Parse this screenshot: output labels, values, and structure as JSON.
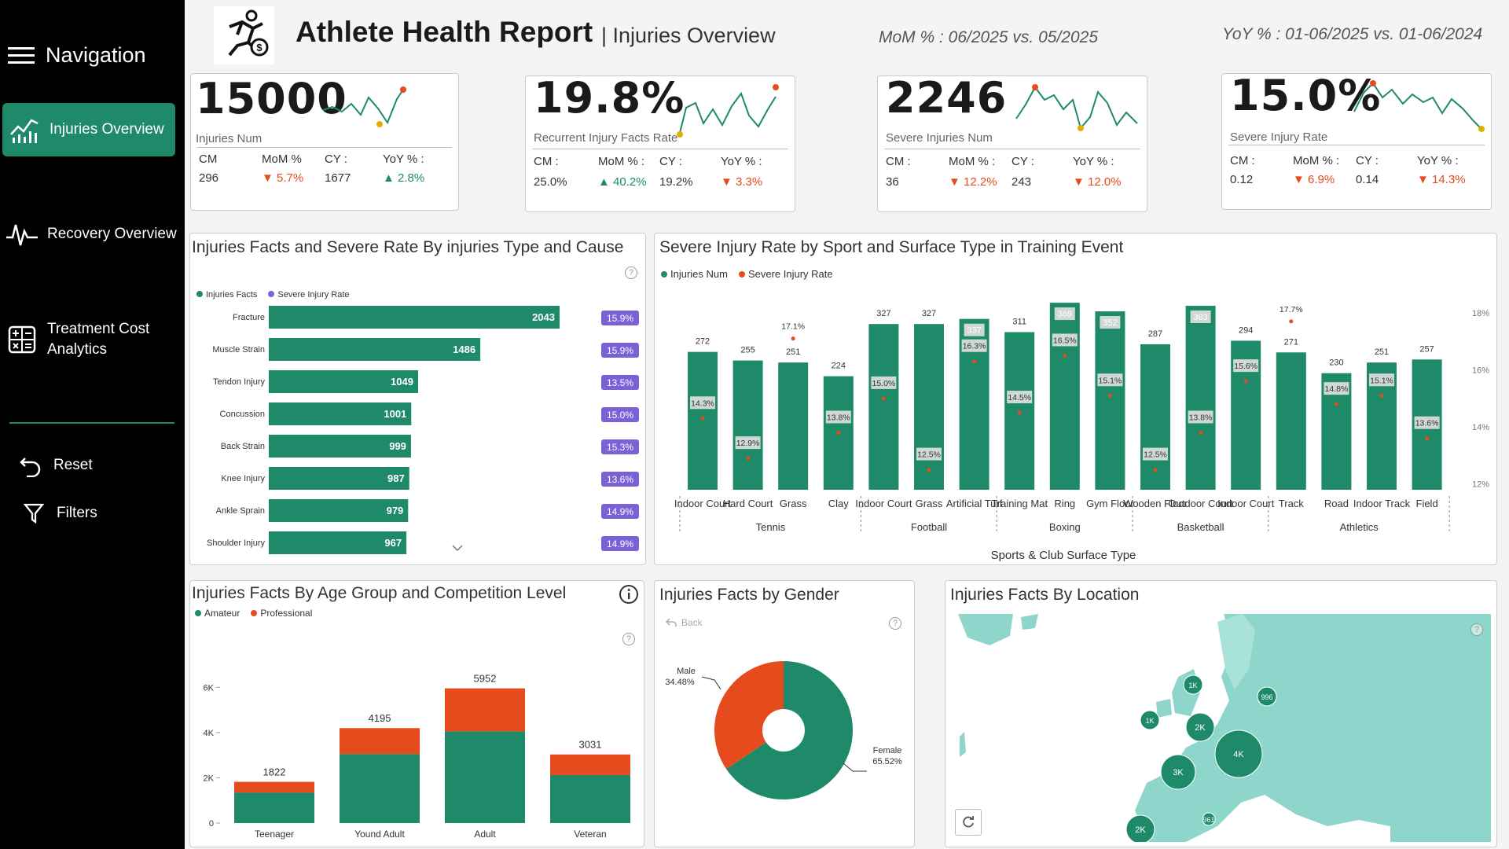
{
  "colors": {
    "accent": "#1e8a69",
    "orange": "#e54b1c",
    "purple": "#7b61d6"
  },
  "nav": {
    "title": "Navigation",
    "items": [
      {
        "label": "Injuries Overview"
      },
      {
        "label": "Recovery Overview"
      },
      {
        "label": "Treatment Cost\nAnalytics"
      }
    ],
    "reset": "Reset",
    "filters": "Filters"
  },
  "header": {
    "title": "Athlete Health Report",
    "sep_subtitle": "| Injuries Overview",
    "mom": "MoM % : 06/2025 vs. 05/2025",
    "yoy": "YoY % : 01-06/2025 vs. 01-06/2024"
  },
  "kpis": [
    {
      "value": "15000",
      "label": "Injuries Num",
      "cm_label": "CM",
      "cm": "296",
      "mom_label": "MoM %",
      "mom": "▼ 5.7%",
      "mom_dir": "dn",
      "cy_label": "CY :",
      "cy": "1677",
      "yoy_label": "YoY % :",
      "yoy": "▲ 2.8%",
      "yoy_dir": "up"
    },
    {
      "value": "19.8%",
      "label": "Recurrent Injury Facts Rate",
      "cm_label": "CM :",
      "cm": "25.0%",
      "mom_label": "MoM % :",
      "mom": "▲ 40.2%",
      "mom_dir": "up",
      "cy_label": "CY :",
      "cy": "19.2%",
      "yoy_label": "YoY % :",
      "yoy": "▼ 3.3%",
      "yoy_dir": "dn"
    },
    {
      "value": "2246",
      "label": "Severe Injuries Num",
      "cm_label": "CM :",
      "cm": "36",
      "mom_label": "MoM % :",
      "mom": "▼ 12.2%",
      "mom_dir": "dn",
      "cy_label": "CY :",
      "cy": "243",
      "yoy_label": "YoY % :",
      "yoy": "▼ 12.0%",
      "yoy_dir": "dn"
    },
    {
      "value": "15.0%",
      "label": "Severe Injury Rate",
      "cm_label": "CM :",
      "cm": "0.12",
      "mom_label": "MoM % :",
      "mom": "▼ 6.9%",
      "mom_dir": "dn",
      "cy_label": "CY :",
      "cy": "0.14",
      "yoy_label": "YoY % :",
      "yoy": "▼ 14.3%",
      "yoy_dir": "dn"
    }
  ],
  "chart_data": [
    {
      "id": "type-cause",
      "type": "bar",
      "orientation": "horizontal",
      "title": "Injuries Facts and Severe Rate By injuries Type and Cause",
      "legend": [
        "Injuries Facts",
        "Severe Injury Rate"
      ],
      "categories": [
        "Fracture",
        "Muscle Strain",
        "Tendon Injury",
        "Concussion",
        "Back Strain",
        "Knee Injury",
        "Ankle Sprain",
        "Shoulder Injury"
      ],
      "values": [
        2043,
        1486,
        1049,
        1001,
        999,
        987,
        979,
        967
      ],
      "rates": [
        "15.9%",
        "15.9%",
        "13.5%",
        "15.0%",
        "15.3%",
        "13.6%",
        "14.9%",
        "14.9%"
      ]
    },
    {
      "id": "sport-surface",
      "type": "bar",
      "title": "Severe Injury Rate by Sport and Surface Type in Training Event",
      "legend": [
        "Injuries Num",
        "Severe Injury Rate"
      ],
      "xlabel": "Sports & Club Surface Type",
      "surfaces": [
        "Indoor Court",
        "Hard Court",
        "Grass",
        "Clay",
        "Indoor Court",
        "Grass",
        "Artificial Turf",
        "Training Mat",
        "Ring",
        "Gym Floor",
        "Wooden Floor",
        "Outdoor Court",
        "Indoor Court",
        "Track",
        "Road",
        "Indoor Track",
        "Field"
      ],
      "sports": [
        {
          "name": "Tennis",
          "span": [
            0,
            3
          ]
        },
        {
          "name": "Football",
          "span": [
            4,
            6
          ]
        },
        {
          "name": "Boxing",
          "span": [
            7,
            9
          ]
        },
        {
          "name": "Basketball",
          "span": [
            10,
            12
          ]
        },
        {
          "name": "Athletics",
          "span": [
            13,
            16
          ]
        }
      ],
      "values": [
        272,
        255,
        251,
        224,
        327,
        327,
        337,
        311,
        369,
        352,
        287,
        363,
        294,
        271,
        230,
        251,
        257
      ],
      "rates": [
        14.3,
        12.9,
        17.1,
        13.8,
        15.0,
        12.5,
        16.3,
        14.5,
        16.5,
        15.1,
        12.5,
        13.8,
        15.6,
        17.7,
        14.8,
        15.1,
        13.6
      ],
      "y2_ticks": [
        "18%",
        "16%",
        "14%",
        "12%"
      ],
      "y2lim": [
        11.8,
        18.8
      ]
    },
    {
      "id": "age-level",
      "type": "bar",
      "stacked": true,
      "title": "Injuries Facts By Age Group and Competition Level",
      "legend": [
        "Amateur",
        "Professional"
      ],
      "categories": [
        "Teenager",
        "Yound Adult",
        "Adult",
        "Veteran"
      ],
      "totals": [
        1822,
        4195,
        5952,
        3031
      ],
      "series": [
        {
          "name": "Amateur",
          "values": [
            1350,
            3050,
            4050,
            2120
          ]
        },
        {
          "name": "Professional",
          "values": [
            472,
            1145,
            1902,
            911
          ]
        }
      ],
      "yticks": [
        "0",
        "2K",
        "4K",
        "6K"
      ],
      "ylim": [
        0,
        6600
      ]
    },
    {
      "id": "gender",
      "type": "pie",
      "donut": true,
      "title": "Injuries Facts by Gender",
      "back_label": "Back",
      "slices": [
        {
          "label": "Male",
          "pct": "34.48%",
          "value": 34.48
        },
        {
          "label": "Female",
          "pct": "65.52%",
          "value": 65.52
        }
      ]
    },
    {
      "id": "location",
      "type": "map",
      "title": "Injuries Facts By Location",
      "bubbles": [
        {
          "label": "1K"
        },
        {
          "label": "996"
        },
        {
          "label": "1K"
        },
        {
          "label": "2K"
        },
        {
          "label": "4K"
        },
        {
          "label": "3K"
        },
        {
          "label": "961"
        },
        {
          "label": "2K"
        }
      ]
    }
  ]
}
